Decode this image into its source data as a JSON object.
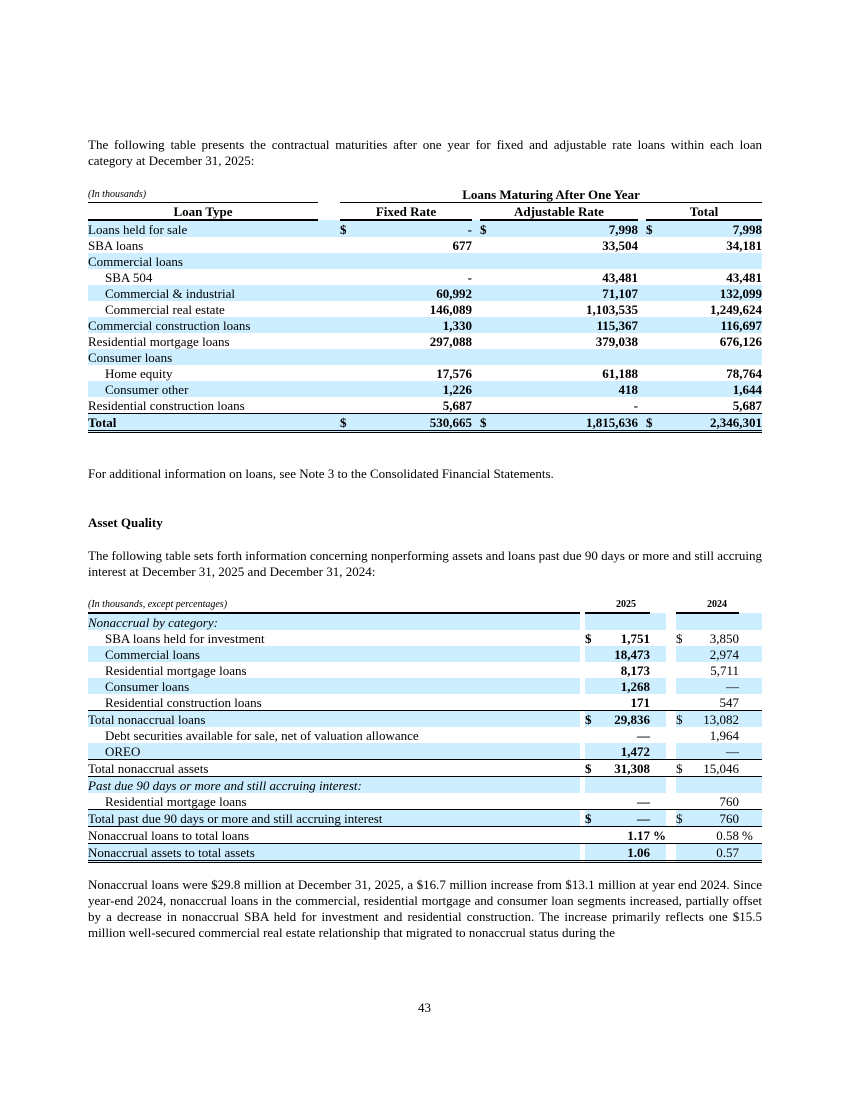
{
  "intro": "The following table presents the contractual maturities after one year for fixed and adjustable rate loans within each loan category at December 31, 2025:",
  "t1": {
    "unit": "(In thousands)",
    "group": "Loans Maturing After One Year",
    "headers": [
      "Loan Type",
      "Fixed Rate",
      "Adjustable Rate",
      "Total"
    ],
    "rows": [
      {
        "label": "Loans held for sale",
        "fixed": "-",
        "adj": "7,998",
        "total": "7,998",
        "dollar": "$"
      },
      {
        "label": "SBA loans",
        "fixed": "677",
        "adj": "33,504",
        "total": "34,181"
      },
      {
        "label": "Commercial loans",
        "fixed": "",
        "adj": "",
        "total": ""
      },
      {
        "label": "SBA 504",
        "fixed": "-",
        "adj": "43,481",
        "total": "43,481"
      },
      {
        "label": "Commercial & industrial",
        "fixed": "60,992",
        "adj": "71,107",
        "total": "132,099"
      },
      {
        "label": "Commercial real estate",
        "fixed": "146,089",
        "adj": "1,103,535",
        "total": "1,249,624"
      },
      {
        "label": "Commercial construction loans",
        "fixed": "1,330",
        "adj": "115,367",
        "total": "116,697"
      },
      {
        "label": "Residential mortgage loans",
        "fixed": "297,088",
        "adj": "379,038",
        "total": "676,126"
      },
      {
        "label": "Consumer loans",
        "fixed": "",
        "adj": "",
        "total": ""
      },
      {
        "label": "Home equity",
        "fixed": "17,576",
        "adj": "61,188",
        "total": "78,764"
      },
      {
        "label": "Consumer other",
        "fixed": "1,226",
        "adj": "418",
        "total": "1,644"
      },
      {
        "label": "Residential construction loans",
        "fixed": "5,687",
        "adj": "-",
        "total": "5,687"
      },
      {
        "label": "Total",
        "fixed": "530,665",
        "adj": "1,815,636",
        "total": "2,346,301",
        "dollar": "$"
      }
    ]
  },
  "note": "For additional information on loans, see Note 3 to the Consolidated Financial Statements.",
  "section_title": "Asset Quality",
  "intro2": "The following table sets forth information concerning nonperforming assets and loans past due 90 days or more and still accruing interest at December 31, 2025 and December 31, 2024:",
  "t2": {
    "unit": "(In thousands, except percentages)",
    "years": [
      "2025",
      "2024"
    ],
    "rows": [
      {
        "label": "Nonaccrual by category:",
        "a": "",
        "b": ""
      },
      {
        "label": "SBA loans held for investment",
        "a": "1,751",
        "b": "3,850",
        "dollar": "$"
      },
      {
        "label": "Commercial loans",
        "a": "18,473",
        "b": "2,974"
      },
      {
        "label": "Residential mortgage loans",
        "a": "8,173",
        "b": "5,711"
      },
      {
        "label": "Consumer loans",
        "a": "1,268",
        "b": "—"
      },
      {
        "label": "Residential construction loans",
        "a": "171",
        "b": "547"
      },
      {
        "label": "Total nonaccrual loans",
        "a": "29,836",
        "b": "13,082",
        "dollar": "$"
      },
      {
        "label": "Debt securities available for sale, net of valuation allowance",
        "a": "—",
        "b": "1,964"
      },
      {
        "label": "OREO",
        "a": "1,472",
        "b": "—"
      },
      {
        "label": "Total nonaccrual assets",
        "a": "31,308",
        "b": "15,046",
        "dollar": "$"
      },
      {
        "label": "Past due 90 days or more and still accruing interest:",
        "a": "",
        "b": ""
      },
      {
        "label": "Residential mortgage loans",
        "a": "—",
        "b": "760"
      },
      {
        "label": "Total past due 90 days or more and still accruing interest",
        "a": "—",
        "b": "760",
        "dollar": "$"
      },
      {
        "label": "Nonaccrual loans to total loans",
        "a": "1.17",
        "b": "0.58",
        "pct": "%"
      },
      {
        "label": "Nonaccrual assets to total assets",
        "a": "1.06",
        "b": "0.57"
      }
    ]
  },
  "closing": "Nonaccrual loans were $29.8 million at December 31, 2025, a $16.7 million increase from $13.1 million at year end 2024. Since year-end 2024, nonaccrual loans in the commercial, residential mortgage and consumer loan segments increased, partially offset by a decrease in nonaccrual SBA held for investment and residential construction. The increase primarily reflects one $15.5 million well-secured commercial real estate relationship that migrated to nonaccrual status during the",
  "page_number": "43"
}
